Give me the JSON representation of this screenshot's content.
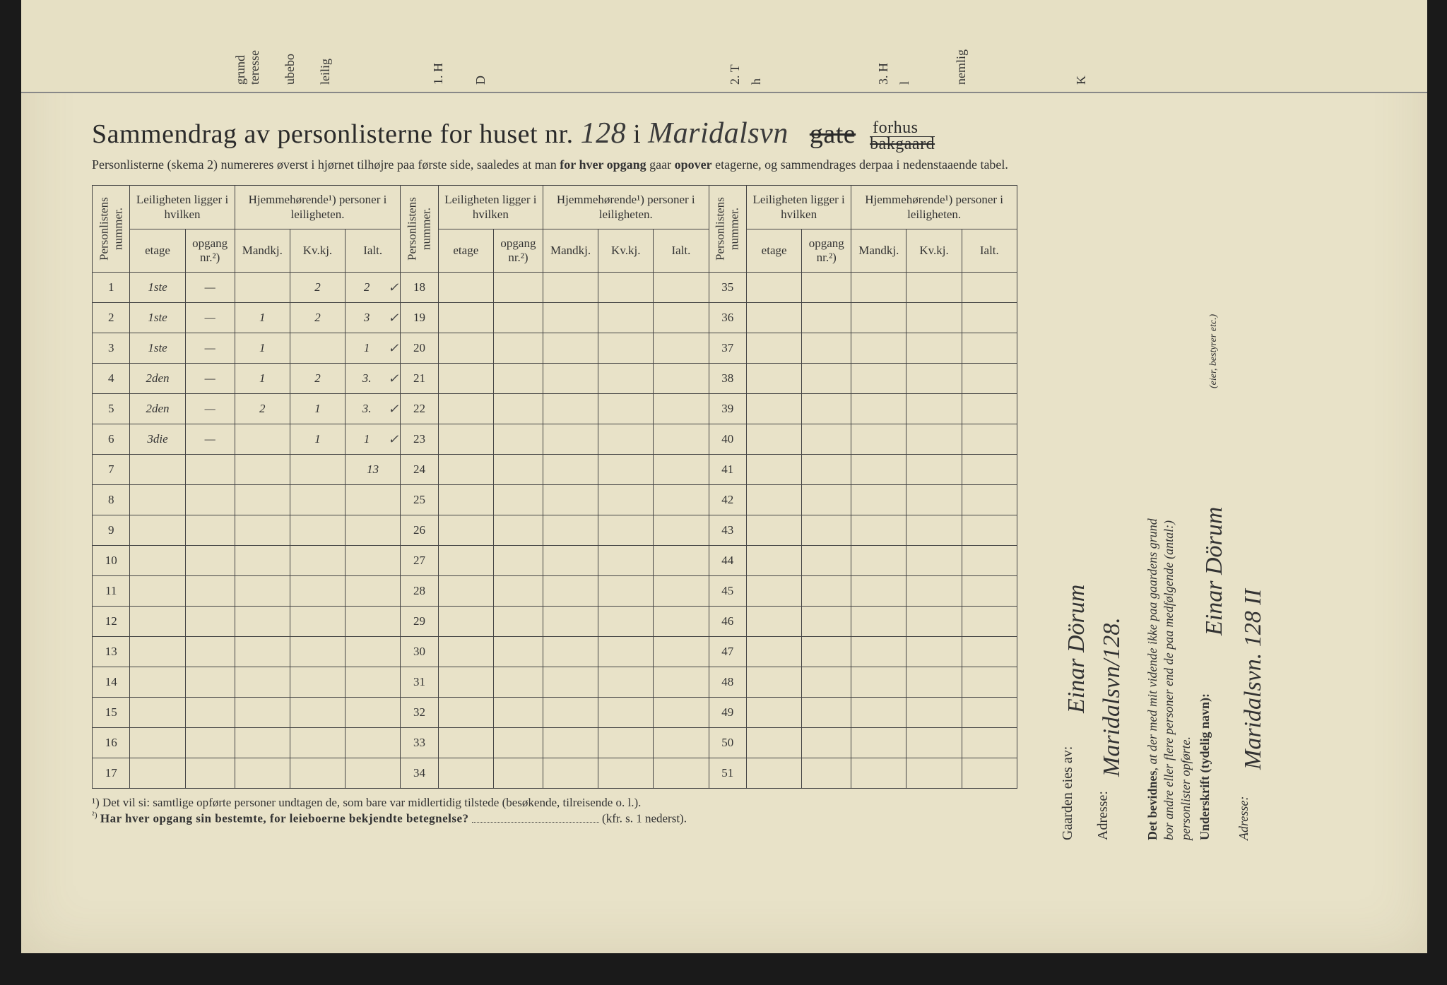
{
  "top_fragments": [
    "grund",
    "teresse",
    "ubebo",
    "leilig",
    "1. H",
    "D",
    "2. T",
    "h",
    "3. H",
    "l",
    "nemlig",
    "K"
  ],
  "title_prefix": "Sammendrag av personlisterne for huset nr.",
  "house_number_hand": "128",
  "title_i": "i",
  "street_hand": "Maridalsvn",
  "word_gate": "gate",
  "forhus": "forhus",
  "bakgaard": "bakgaard",
  "subtitle": "Personlisterne (skema 2) numereres øverst i hjørnet tilhøjre paa første side, saaledes at man for hver opgang gaar opover etagerne, og sammendrages derpaa i nedenstaaende tabel.",
  "subtitle_b1": "for hver opgang",
  "subtitle_b2": "opover",
  "header_personlistens": "Personlistens nummer.",
  "header_leil": "Leiligheten ligger i hvilken",
  "header_hjemme": "Hjemmehørende¹) personer i leiligheten.",
  "col_etage": "etage",
  "col_opgang": "opgang nr.²)",
  "col_mandkj": "Mandkj.",
  "col_kvkj": "Kv.kj.",
  "col_ialt": "Ialt.",
  "rows_block1": [
    {
      "n": "1",
      "etage": "1ste",
      "op": "—",
      "m": "",
      "k": "2",
      "i": "2",
      "tick": "✓"
    },
    {
      "n": "2",
      "etage": "1ste",
      "op": "—",
      "m": "1",
      "k": "2",
      "i": "3",
      "tick": "✓"
    },
    {
      "n": "3",
      "etage": "1ste",
      "op": "—",
      "m": "1",
      "k": "",
      "i": "1",
      "tick": "✓"
    },
    {
      "n": "4",
      "etage": "2den",
      "op": "—",
      "m": "1",
      "k": "2",
      "i": "3.",
      "tick": "✓"
    },
    {
      "n": "5",
      "etage": "2den",
      "op": "—",
      "m": "2",
      "k": "1",
      "i": "3.",
      "tick": "✓"
    },
    {
      "n": "6",
      "etage": "3die",
      "op": "—",
      "m": "",
      "k": "1",
      "i": "1",
      "tick": "✓"
    },
    {
      "n": "7",
      "etage": "",
      "op": "",
      "m": "",
      "k": "",
      "i": "13",
      "tick": ""
    },
    {
      "n": "8",
      "etage": "",
      "op": "",
      "m": "",
      "k": "",
      "i": "",
      "tick": ""
    },
    {
      "n": "9",
      "etage": "",
      "op": "",
      "m": "",
      "k": "",
      "i": "",
      "tick": ""
    },
    {
      "n": "10",
      "etage": "",
      "op": "",
      "m": "",
      "k": "",
      "i": "",
      "tick": ""
    },
    {
      "n": "11",
      "etage": "",
      "op": "",
      "m": "",
      "k": "",
      "i": "",
      "tick": ""
    },
    {
      "n": "12",
      "etage": "",
      "op": "",
      "m": "",
      "k": "",
      "i": "",
      "tick": ""
    },
    {
      "n": "13",
      "etage": "",
      "op": "",
      "m": "",
      "k": "",
      "i": "",
      "tick": ""
    },
    {
      "n": "14",
      "etage": "",
      "op": "",
      "m": "",
      "k": "",
      "i": "",
      "tick": ""
    },
    {
      "n": "15",
      "etage": "",
      "op": "",
      "m": "",
      "k": "",
      "i": "",
      "tick": ""
    },
    {
      "n": "16",
      "etage": "",
      "op": "",
      "m": "",
      "k": "",
      "i": "",
      "tick": ""
    },
    {
      "n": "17",
      "etage": "",
      "op": "",
      "m": "",
      "k": "",
      "i": "",
      "tick": ""
    }
  ],
  "rows_block2_nums": [
    "18",
    "19",
    "20",
    "21",
    "22",
    "23",
    "24",
    "25",
    "26",
    "27",
    "28",
    "29",
    "30",
    "31",
    "32",
    "33",
    "34"
  ],
  "rows_block3_nums": [
    "35",
    "36",
    "37",
    "38",
    "39",
    "40",
    "41",
    "42",
    "43",
    "44",
    "45",
    "46",
    "47",
    "48",
    "49",
    "50",
    "51"
  ],
  "footnote1": "¹)  Det vil si: samtlige opførte personer undtagen de, som bare var midlertidig tilstede (besøkende, tilreisende o. l.).",
  "footnote2": "²) Har hver opgang sin bestemte, for leieboerne bekjendte betegnelse?",
  "footnote2_suffix": "(kfr. s. 1 nederst).",
  "owner_label": "Gaarden eies av:",
  "owner_name": "Einar Dörum",
  "owner_addr_label": "Adresse:",
  "owner_addr": "Maridalsvn/128.",
  "attest_text": "Det bevidnes, at der med mit vidende ikke paa gaardens grund bor andre eller flere personer end de paa medfølgende (antal:) personlister opførte.",
  "underskrift_label": "Underskrift (tydelig navn):",
  "underskrift_name": "Einar Dörum",
  "eier_note": "(eier, bestyrer etc.)",
  "addr2_label": "Adresse:",
  "addr2_val": "Maridalsvn. 128 II"
}
